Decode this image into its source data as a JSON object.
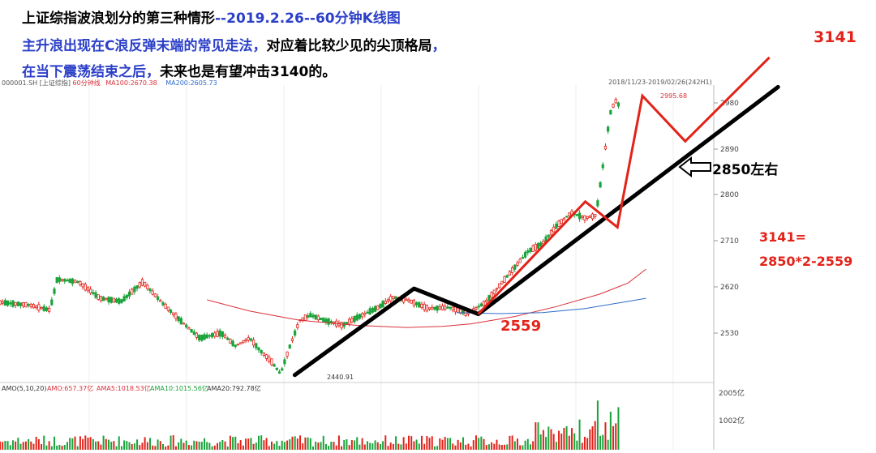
{
  "titles": {
    "line1_a": "上证综指波浪划分的第三种情形",
    "line1_b": "--2019.2.26--60分钟K线图",
    "line2_a": "主升浪出现在C浪反弹末端的常见走法，",
    "line2_b": "对应着比较少见的尖顶格局",
    "line2_c": "，",
    "line3_a": "在当下震荡结束之后，",
    "line3_b": "未来也是有望冲击3140的。"
  },
  "chart_header": {
    "symbol": "000001.SH",
    "name": "[上证综指]",
    "period": "60分钟线",
    "ma100": "MA100:2670.38",
    "ma200": "MA200:2605.73",
    "range": "2018/11/23-2019/02/26(242H1)"
  },
  "annotations": {
    "target": "3141",
    "pivot": "2850左右",
    "low_label": "2559",
    "formula_1": "3141=",
    "formula_2": "2850*2-2559",
    "high_value": "2995.68",
    "low_value": "2440.91"
  },
  "volume_header": {
    "label": "AMO(5,10,20)",
    "amo": "AMO:657.37亿",
    "amo5": "AMA5:1018.53亿",
    "amo10": "AMA10:1015.56亿",
    "amo20": "AMA20:792.78亿"
  },
  "chart_data": {
    "type": "line",
    "ylim": [
      2440,
      3000
    ],
    "y_ticks": [
      "2980",
      "2890",
      "2800",
      "2710",
      "2620",
      "2530"
    ],
    "volume_ticks": [
      "2005亿",
      "1002亿"
    ],
    "series": [
      {
        "name": "MA100",
        "color": "#d8303a",
        "points": [
          [
            0.29,
            2595
          ],
          [
            0.35,
            2573
          ],
          [
            0.42,
            2555
          ],
          [
            0.5,
            2545
          ],
          [
            0.57,
            2541
          ],
          [
            0.62,
            2543
          ],
          [
            0.66,
            2548
          ],
          [
            0.72,
            2562
          ],
          [
            0.78,
            2582
          ],
          [
            0.84,
            2606
          ],
          [
            0.88,
            2628
          ],
          [
            0.905,
            2655
          ]
        ]
      },
      {
        "name": "MA200",
        "color": "#2f6cc8",
        "points": [
          [
            0.64,
            2570
          ],
          [
            0.7,
            2568
          ],
          [
            0.76,
            2570
          ],
          [
            0.82,
            2578
          ],
          [
            0.88,
            2592
          ],
          [
            0.905,
            2598
          ]
        ]
      }
    ],
    "wave_black": [
      [
        0.413,
        2448
      ],
      [
        0.58,
        2617
      ],
      [
        0.67,
        2567
      ],
      [
        1.09,
        3011
      ]
    ],
    "wave_red": [
      [
        0.67,
        2567
      ],
      [
        0.82,
        2787
      ],
      [
        0.865,
        2737
      ],
      [
        0.9,
        2994
      ],
      [
        0.96,
        2905
      ],
      [
        1.078,
        3069
      ]
    ]
  },
  "colors": {
    "up": "#e2231a",
    "down": "#1aa33a",
    "black_line": "#000000",
    "red_line": "#e2231a",
    "blue_text": "#2b3fc8"
  }
}
